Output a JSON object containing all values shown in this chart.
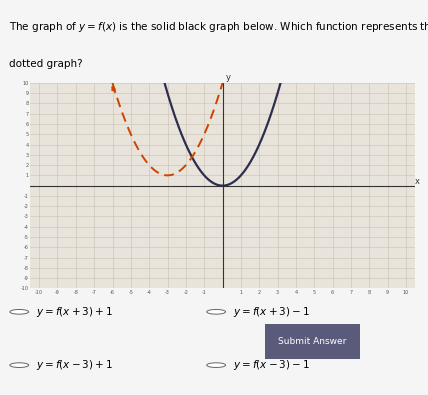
{
  "xlim": [
    -10.5,
    10.5
  ],
  "ylim": [
    -10,
    10
  ],
  "solid_color": "#2d2d4e",
  "dotted_color": "#cc4400",
  "solid_vertex": [
    0,
    0
  ],
  "dotted_vertex": [
    -3,
    1
  ],
  "bg_color": "#f5f5f5",
  "graph_bg": "#e8e4dc",
  "grid_color": "#ccbfb0",
  "axis_color": "#333333",
  "tick_color": "#555555",
  "bottom_bg": "#d4cfc8",
  "submit_bg": "#5a5a7a",
  "submit_text_color": "#ffffff",
  "title_line1": "The graph of $y = f(x)$ is the solid black graph below. Which function represents the",
  "title_line2": "dotted graph?",
  "choice_labels": [
    "y=f(x+3)+1",
    "y=f(x+3)-1",
    "y=f(x-3)+1",
    "y=f(x-3)-1"
  ],
  "choice_display": [
    "$y=f(x+3)+1$",
    "$y=f(x+3)-1$",
    "$y=f(x-3)+1$",
    "$y=f(x-3)-1$"
  ],
  "submit_text": "Submit Answer"
}
